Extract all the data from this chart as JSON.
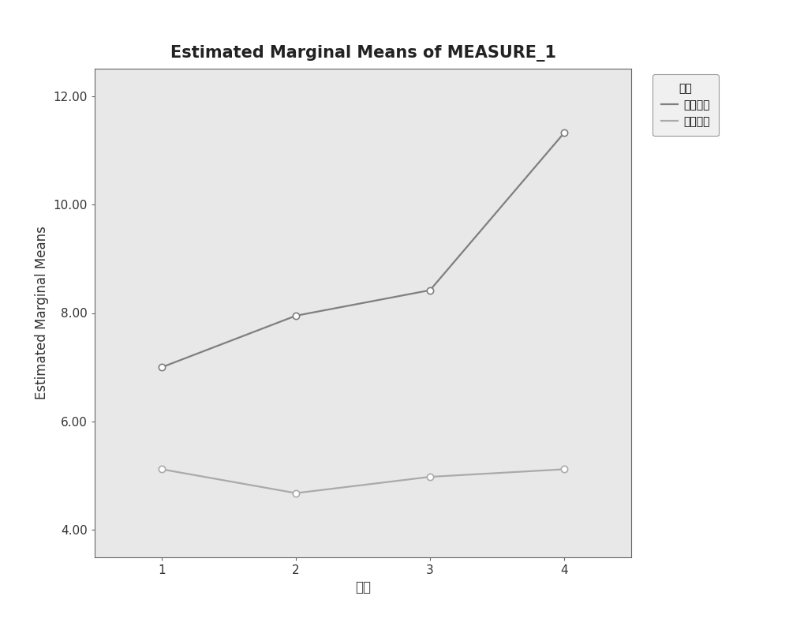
{
  "title": "Estimated Marginal Means of MEASURE_1",
  "xlabel": "时间",
  "ylabel": "Estimated Marginal Means",
  "legend_title": "组别",
  "series": [
    {
      "label": "正常人群",
      "x": [
        1,
        2,
        3,
        4
      ],
      "y": [
        7.0,
        7.95,
        8.42,
        11.32
      ],
      "color": "#7f7f7f",
      "linewidth": 1.6,
      "marker": "o",
      "markersize": 6,
      "markerfacecolor": "white",
      "markeredgecolor": "#7f7f7f",
      "markeredgewidth": 1.2
    },
    {
      "label": "高危人群",
      "x": [
        1,
        2,
        3,
        4
      ],
      "y": [
        5.12,
        4.68,
        4.98,
        5.12
      ],
      "color": "#aaaaaa",
      "linewidth": 1.6,
      "marker": "o",
      "markersize": 6,
      "markerfacecolor": "white",
      "markeredgecolor": "#aaaaaa",
      "markeredgewidth": 1.2
    }
  ],
  "xlim": [
    0.5,
    4.5
  ],
  "ylim": [
    3.5,
    12.5
  ],
  "yticks": [
    4.0,
    6.0,
    8.0,
    10.0,
    12.0
  ],
  "ytick_labels": [
    "4.00",
    "6.00",
    "8.00",
    "10.00",
    "12.00"
  ],
  "xticks": [
    1,
    2,
    3,
    4
  ],
  "xtick_labels": [
    "1",
    "2",
    "3",
    "4"
  ],
  "fig_facecolor": "#ffffff",
  "plot_bg_color": "#e8e8e8",
  "title_fontsize": 15,
  "axis_label_fontsize": 12,
  "tick_fontsize": 11,
  "legend_fontsize": 10,
  "legend_title_fontsize": 10
}
